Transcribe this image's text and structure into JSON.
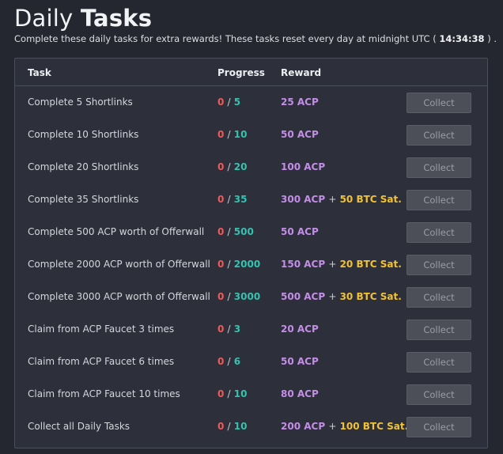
{
  "header": {
    "title_light": "Daily",
    "title_bold": "Tasks",
    "subtitle_before": "Complete these daily tasks for extra rewards! These tasks reset every day at midnight UTC (",
    "timer": "14:34:38",
    "subtitle_after": ") ."
  },
  "table": {
    "columns": {
      "task": "Task",
      "progress": "Progress",
      "reward": "Reward"
    },
    "separator": "/",
    "plus": "+",
    "rows": [
      {
        "task": "Complete 5 Shortlinks",
        "done": "0",
        "goal": "5",
        "reward_acp": "25 ACP",
        "reward_btc": "",
        "button": "Collect"
      },
      {
        "task": "Complete 10 Shortlinks",
        "done": "0",
        "goal": "10",
        "reward_acp": "50 ACP",
        "reward_btc": "",
        "button": "Collect"
      },
      {
        "task": "Complete 20 Shortlinks",
        "done": "0",
        "goal": "20",
        "reward_acp": "100 ACP",
        "reward_btc": "",
        "button": "Collect"
      },
      {
        "task": "Complete 35 Shortlinks",
        "done": "0",
        "goal": "35",
        "reward_acp": "300 ACP",
        "reward_btc": "50 BTC Sat.",
        "button": "Collect"
      },
      {
        "task": "Complete 500 ACP worth of Offerwall",
        "done": "0",
        "goal": "500",
        "reward_acp": "50 ACP",
        "reward_btc": "",
        "button": "Collect"
      },
      {
        "task": "Complete 2000 ACP worth of Offerwall",
        "done": "0",
        "goal": "2000",
        "reward_acp": "150 ACP",
        "reward_btc": "20 BTC Sat.",
        "button": "Collect"
      },
      {
        "task": "Complete 3000 ACP worth of Offerwall",
        "done": "0",
        "goal": "3000",
        "reward_acp": "500 ACP",
        "reward_btc": "30 BTC Sat.",
        "button": "Collect"
      },
      {
        "task": "Claim from ACP Faucet 3 times",
        "done": "0",
        "goal": "3",
        "reward_acp": "20 ACP",
        "reward_btc": "",
        "button": "Collect"
      },
      {
        "task": "Claim from ACP Faucet 6 times",
        "done": "0",
        "goal": "6",
        "reward_acp": "50 ACP",
        "reward_btc": "",
        "button": "Collect"
      },
      {
        "task": "Claim from ACP Faucet 10 times",
        "done": "0",
        "goal": "10",
        "reward_acp": "80 ACP",
        "reward_btc": "",
        "button": "Collect"
      },
      {
        "task": "Collect all Daily Tasks",
        "done": "0",
        "goal": "10",
        "reward_acp": "200 ACP",
        "reward_btc": "100 BTC Sat.",
        "button": "Collect"
      }
    ]
  },
  "colors": {
    "progress_done": "#ef5a5a",
    "progress_goal": "#34c3b0",
    "reward_acp": "#c48ee8",
    "reward_btc": "#f1c232"
  }
}
